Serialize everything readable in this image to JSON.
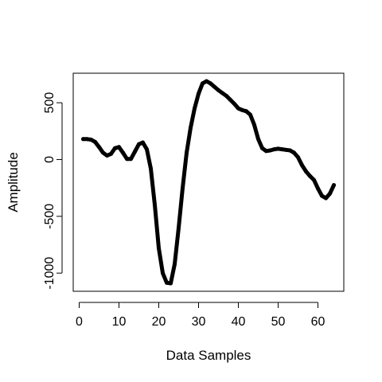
{
  "chart_data": {
    "type": "line",
    "title": "",
    "xlabel": "Data Samples",
    "ylabel": "Amplitude",
    "xlim": [
      -1.5,
      66.5
    ],
    "ylim": [
      -1160,
      760
    ],
    "x_ticks": [
      0,
      10,
      20,
      30,
      40,
      50,
      60
    ],
    "y_ticks": [
      -1000,
      -500,
      0,
      500
    ],
    "grid": false,
    "legend": "none",
    "line_color": "#000000",
    "series": [
      {
        "x": [
          1,
          2,
          3,
          4,
          5,
          6,
          7,
          8,
          9,
          10,
          11,
          12,
          13,
          14,
          15,
          16,
          17,
          18,
          19,
          20,
          21,
          22,
          23,
          24,
          25,
          26,
          27,
          28,
          29,
          30,
          31,
          32,
          33,
          34,
          35,
          36,
          37,
          38,
          39,
          40,
          41,
          42,
          43,
          44,
          45,
          46,
          47,
          48,
          49,
          50,
          51,
          52,
          53,
          54,
          55,
          56,
          57,
          58,
          59,
          60,
          61,
          62,
          63,
          64
        ],
        "values": [
          180,
          180,
          175,
          155,
          110,
          60,
          35,
          50,
          100,
          110,
          60,
          5,
          5,
          70,
          135,
          150,
          90,
          -80,
          -400,
          -780,
          -1000,
          -1085,
          -1090,
          -920,
          -600,
          -250,
          60,
          280,
          450,
          580,
          670,
          690,
          670,
          640,
          610,
          585,
          560,
          525,
          490,
          450,
          435,
          425,
          395,
          305,
          180,
          100,
          75,
          80,
          90,
          95,
          90,
          85,
          80,
          60,
          20,
          -50,
          -105,
          -145,
          -180,
          -255,
          -320,
          -340,
          -300,
          -225
        ]
      }
    ]
  }
}
